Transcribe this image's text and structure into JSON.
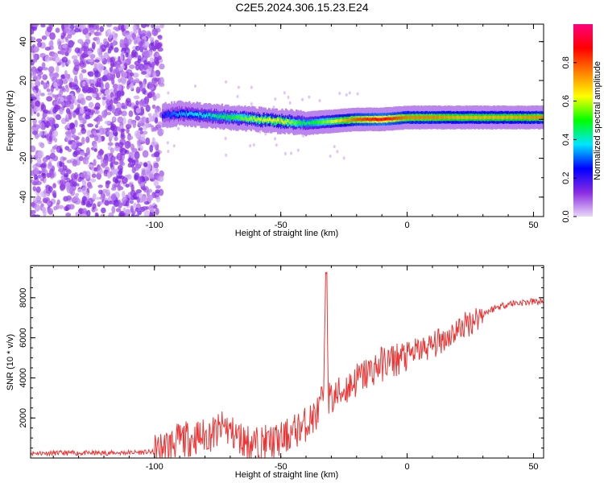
{
  "title": "C2E5.2024.306.15.23.E24",
  "colormap": [
    "#e8d8f8",
    "#8a2be2",
    "#0000ff",
    "#00e5ff",
    "#00ff00",
    "#ffff00",
    "#ff7f00",
    "#ff0000",
    "#ff007f"
  ],
  "chart_data": [
    {
      "type": "heatmap",
      "xlabel": "Height of straight line (km)",
      "ylabel": "Frequency (Hz)",
      "xlim": [
        -149,
        54
      ],
      "ylim": [
        -50,
        49
      ],
      "xticks": [
        -100,
        -50,
        0,
        50
      ],
      "yticks": [
        -40,
        -20,
        0,
        20,
        40
      ],
      "colorbar": {
        "label": "Normalized spectral amplitude",
        "range": [
          0.0,
          1.0
        ],
        "ticks": [
          0.0,
          0.2,
          0.4,
          0.6,
          0.8
        ]
      },
      "regions": [
        {
          "x_range": [
            -149,
            -97
          ],
          "freq_range": [
            -50,
            49
          ],
          "amplitude_range": [
            0.02,
            0.15
          ]
        },
        {
          "x_range": [
            -97,
            54
          ],
          "freq_range": [
            -10,
            10
          ],
          "amplitude_range": [
            0.1,
            1.0
          ]
        }
      ],
      "ridge": {
        "x": [
          -97,
          -90,
          -80,
          -70,
          -60,
          -50,
          -40,
          -30,
          -20,
          -10,
          0,
          10,
          20,
          30,
          40,
          54
        ],
        "freq": [
          2,
          3,
          2,
          1,
          0,
          -1,
          -2,
          -1,
          0,
          0,
          1,
          1,
          1,
          1,
          1,
          1
        ],
        "amplitude": [
          0.25,
          0.35,
          0.4,
          0.5,
          0.6,
          0.65,
          0.45,
          0.6,
          0.8,
          0.9,
          0.75,
          0.75,
          0.7,
          0.7,
          0.7,
          0.75
        ]
      }
    },
    {
      "type": "line",
      "xlabel": "Height of straight line (km)",
      "ylabel": "SNR (10 * v/v)",
      "xlim": [
        -149,
        54
      ],
      "ylim": [
        0,
        9600
      ],
      "xticks": [
        -100,
        -50,
        0,
        50
      ],
      "yticks": [
        2000,
        4000,
        6000,
        8000
      ],
      "series": [
        {
          "color": "#ee3333",
          "x": [
            -149,
            -120,
            -100,
            -95,
            -90,
            -85,
            -80,
            -75,
            -72,
            -70,
            -65,
            -60,
            -55,
            -50,
            -45,
            -40,
            -35,
            -33,
            -32,
            -31,
            -30,
            -25,
            -20,
            -15,
            -10,
            -5,
            0,
            5,
            10,
            15,
            20,
            25,
            30,
            35,
            40,
            45,
            50,
            54
          ],
          "y": [
            250,
            250,
            300,
            600,
            900,
            1000,
            1100,
            1300,
            1600,
            1300,
            900,
            700,
            800,
            900,
            1300,
            1700,
            2300,
            3200,
            9600,
            3000,
            2900,
            3400,
            3900,
            4300,
            4700,
            4900,
            5100,
            5400,
            5600,
            6000,
            6400,
            6800,
            7200,
            7500,
            7700,
            7750,
            7800,
            7800
          ]
        }
      ]
    }
  ]
}
